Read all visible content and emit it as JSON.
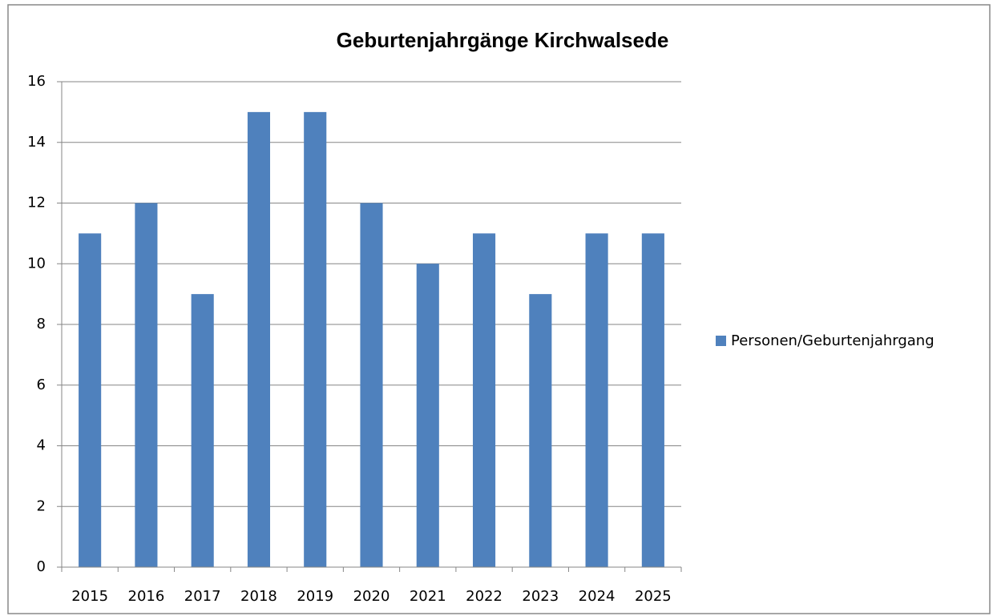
{
  "chart_data": {
    "type": "bar",
    "title": "Geburtenjahrgänge Kirchwalsede",
    "categories": [
      "2015",
      "2016",
      "2017",
      "2018",
      "2019",
      "2020",
      "2021",
      "2022",
      "2023",
      "2024",
      "2025"
    ],
    "series": [
      {
        "name": "Personen/Geburtenjahrgang",
        "color": "#4f81bd",
        "values": [
          11,
          12,
          9,
          15,
          15,
          12,
          10,
          11,
          9,
          11,
          11
        ]
      }
    ],
    "ylim": [
      0,
      16
    ],
    "yticks": [
      0,
      2,
      4,
      6,
      8,
      10,
      12,
      14,
      16
    ],
    "grid": true,
    "legend": "right"
  }
}
